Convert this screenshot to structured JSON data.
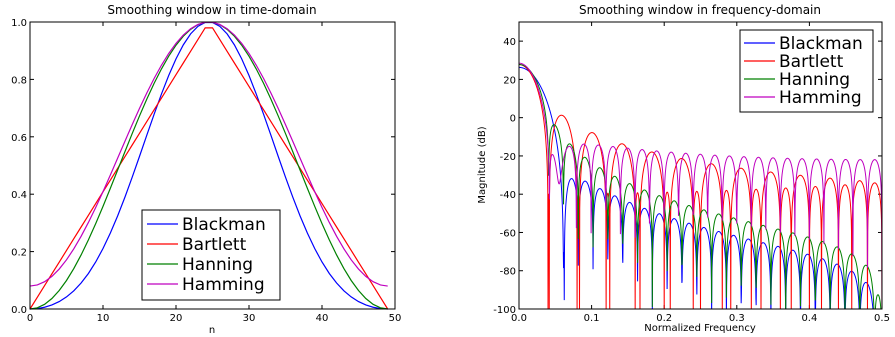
{
  "chart_data": [
    {
      "type": "line",
      "title": "Smoothing window in time-domain",
      "xlabel": "n",
      "ylabel": "",
      "xlim": [
        0,
        50
      ],
      "ylim": [
        0,
        1.0
      ],
      "xticks": [
        "0",
        "10",
        "20",
        "30",
        "40",
        "50"
      ],
      "yticks": [
        "0.0",
        "0.2",
        "0.4",
        "0.6",
        "0.8",
        "1.0"
      ],
      "grid": false,
      "legend_position": "lower center",
      "series": [
        {
          "name": "Blackman",
          "color": "#0000ff",
          "window": "blackman",
          "length": 50
        },
        {
          "name": "Bartlett",
          "color": "#ff0000",
          "window": "bartlett",
          "length": 50
        },
        {
          "name": "Hanning",
          "color": "#008000",
          "window": "hanning",
          "length": 50
        },
        {
          "name": "Hamming",
          "color": "#bf00bf",
          "window": "hamming",
          "length": 50
        }
      ]
    },
    {
      "type": "line",
      "title": "Smoothing window in frequency-domain",
      "xlabel": "Normalized Frequency",
      "ylabel": "Magnitude (dB)",
      "xlim": [
        0.0,
        0.5
      ],
      "ylim": [
        -100,
        50
      ],
      "xticks": [
        "0.0",
        "0.1",
        "0.2",
        "0.3",
        "0.4",
        "0.5"
      ],
      "yticks": [
        "-100",
        "-80",
        "-60",
        "-40",
        "-20",
        "0",
        "20",
        "40"
      ],
      "grid": false,
      "legend_position": "upper right",
      "series": [
        {
          "name": "Blackman",
          "color": "#0000ff",
          "window": "blackman",
          "length": 50
        },
        {
          "name": "Bartlett",
          "color": "#ff0000",
          "window": "bartlett",
          "length": 50
        },
        {
          "name": "Hanning",
          "color": "#008000",
          "window": "hanning",
          "length": 50
        },
        {
          "name": "Hamming",
          "color": "#bf00bf",
          "window": "hamming",
          "length": 50
        }
      ]
    }
  ]
}
